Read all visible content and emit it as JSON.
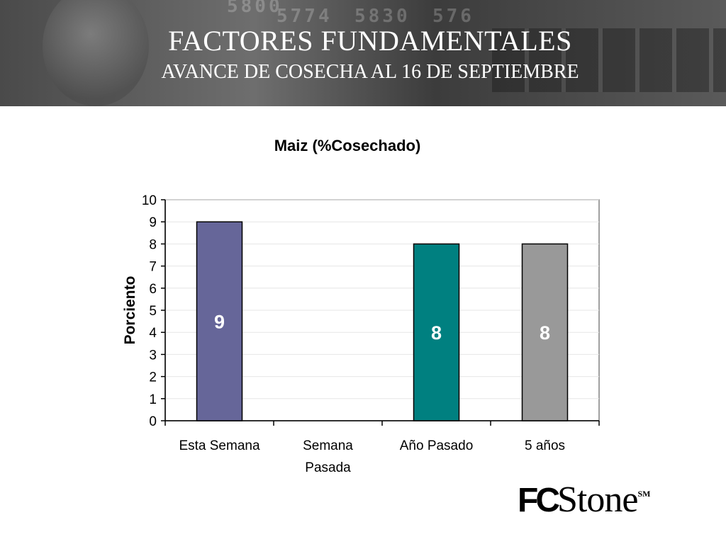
{
  "slide": {
    "title": "FACTORES FUNDAMENTALES",
    "subtitle": "AVANCE DE COSECHA AL 16 DE SEPTIEMBRE"
  },
  "banner_ticker": [
    "5800",
    "5774",
    "5830",
    "576"
  ],
  "logo": {
    "text_fc": "FC",
    "text_stone": "Stone",
    "mark": "SM"
  },
  "chart_data": {
    "type": "bar",
    "title": "Maiz (%Cosechado)",
    "xlabel": "",
    "ylabel": "Porciento",
    "categories": [
      "Esta Semana",
      "Semana Pasada",
      "Año Pasado",
      "5 años"
    ],
    "values": [
      9,
      0,
      8,
      8
    ],
    "data_labels": [
      "9",
      "",
      "8",
      "8"
    ],
    "bar_colors": [
      "#666699",
      "#666699",
      "#008080",
      "#999999"
    ],
    "ylim": [
      0,
      10
    ],
    "yticks": [
      0,
      1,
      2,
      3,
      4,
      5,
      6,
      7,
      8,
      9,
      10
    ],
    "grid": true,
    "legend": "none"
  }
}
